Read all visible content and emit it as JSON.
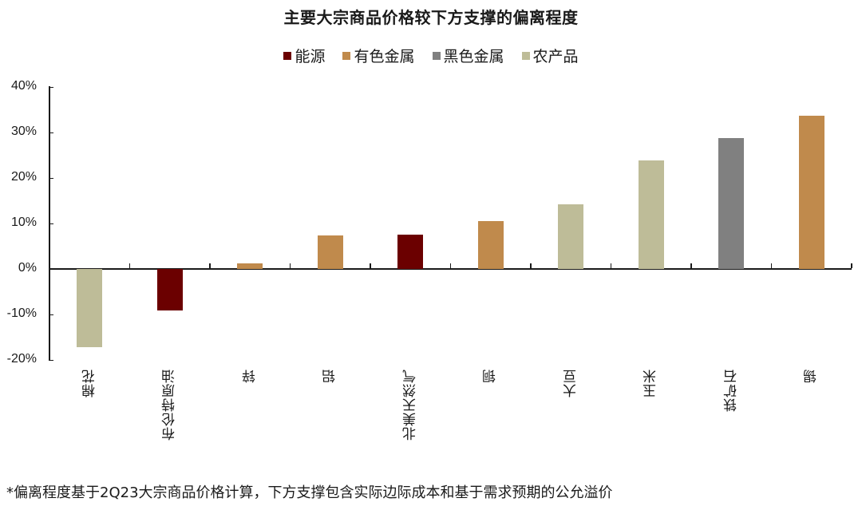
{
  "chart_data": {
    "type": "bar",
    "title": "主要大宗商品价格较下方支撑的偏离程度",
    "xlabel": "",
    "ylabel": "",
    "ylim": [
      -0.2,
      0.4
    ],
    "yticks": [
      "40%",
      "30%",
      "20%",
      "10%",
      "0%",
      "-10%",
      "-20%"
    ],
    "grid": false,
    "legend_position": "top",
    "legend": [
      {
        "name": "能源",
        "color": "#6B0000"
      },
      {
        "name": "有色金属",
        "color": "#C08A4C"
      },
      {
        "name": "黑色金属",
        "color": "#808080"
      },
      {
        "name": "农产品",
        "color": "#BEBC98"
      }
    ],
    "categories": [
      "棉花",
      "布伦特原油",
      "锌",
      "铝",
      "北美天然气",
      "铜",
      "大豆",
      "玉米",
      "铁矿石",
      "锡"
    ],
    "groups": [
      "农产品",
      "能源",
      "有色金属",
      "有色金属",
      "能源",
      "有色金属",
      "农产品",
      "农产品",
      "黑色金属",
      "有色金属"
    ],
    "values": [
      -0.172,
      -0.091,
      0.012,
      0.074,
      0.076,
      0.105,
      0.142,
      0.239,
      0.288,
      0.337
    ],
    "footnote": "*偏离程度基于2Q23大宗商品价格计算，下方支撑包含实际边际成本和基于需求预期的公允溢价"
  },
  "colors": {
    "能源": "#6B0000",
    "有色金属": "#C08A4C",
    "黑色金属": "#808080",
    "农产品": "#BEBC98"
  }
}
